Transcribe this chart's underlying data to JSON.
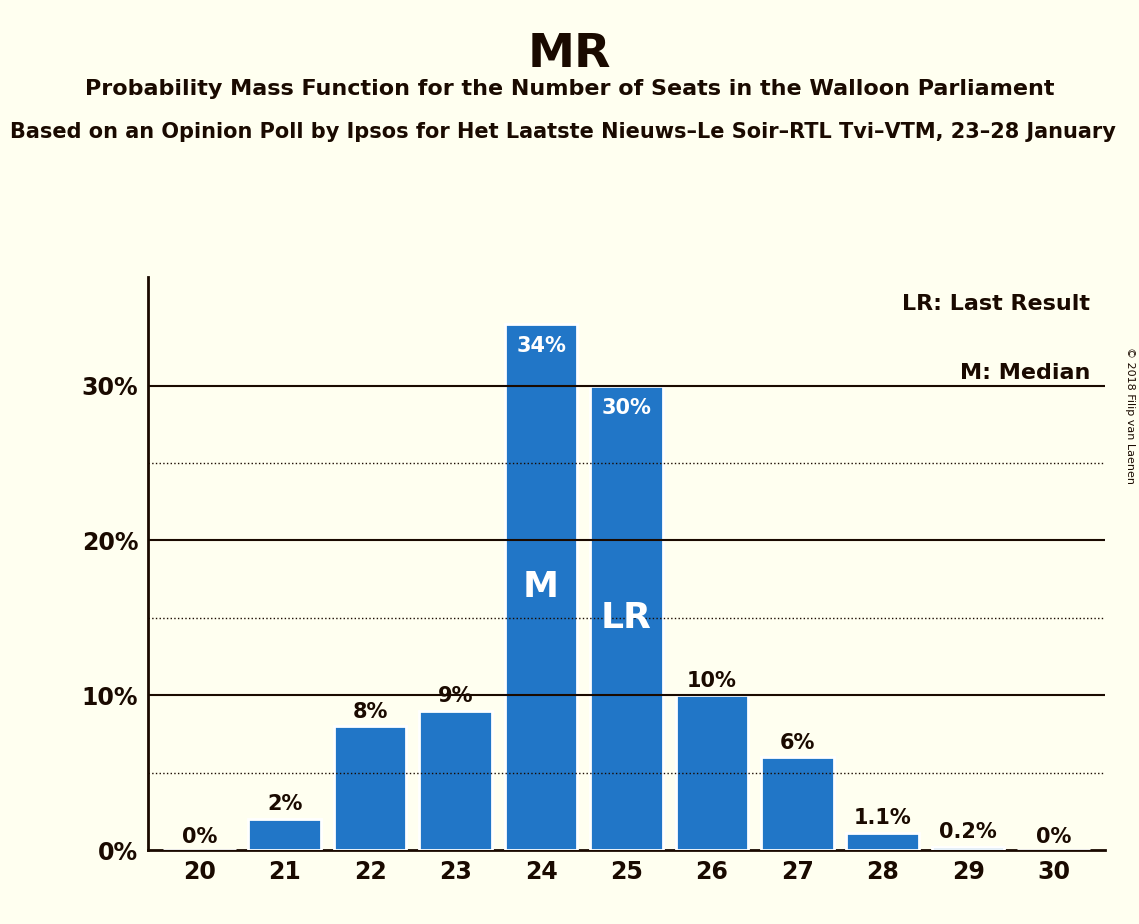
{
  "title": "MR",
  "subtitle": "Probability Mass Function for the Number of Seats in the Walloon Parliament",
  "subtitle2": "Based on an Opinion Poll by Ipsos for Het Laatste Nieuws–Le Soir–RTL Tvi–VTM, 23–28 January",
  "copyright": "© 2018 Filip van Laenen",
  "categories": [
    20,
    21,
    22,
    23,
    24,
    25,
    26,
    27,
    28,
    29,
    30
  ],
  "values": [
    0.0,
    2.0,
    8.0,
    9.0,
    34.0,
    30.0,
    10.0,
    6.0,
    1.1,
    0.2,
    0.0
  ],
  "labels": [
    "0%",
    "2%",
    "8%",
    "9%",
    "34%",
    "30%",
    "10%",
    "6%",
    "1.1%",
    "0.2%",
    "0%"
  ],
  "bar_color": "#2176C7",
  "background_color": "#FFFFF0",
  "median_seat": 24,
  "last_result_seat": 25,
  "legend_lr": "LR: Last Result",
  "legend_m": "M: Median",
  "yticks": [
    0,
    10,
    20,
    30
  ],
  "ytick_labels": [
    "0%",
    "10%",
    "20%",
    "30%"
  ],
  "solid_gridlines": [
    10.0,
    20.0,
    30.0
  ],
  "dotted_gridlines": [
    5.0,
    15.0,
    25.0
  ],
  "text_color": "#1a0a00",
  "bar_label_fontsize": 15,
  "bar_label_color_outside": "#1a0a00",
  "bar_label_color_inside": "white",
  "bar_label_inside_threshold": 15.0,
  "title_fontsize": 34,
  "subtitle_fontsize": 16,
  "subtitle2_fontsize": 15,
  "legend_fontsize": 16,
  "ytick_fontsize": 17,
  "xtick_fontsize": 17
}
